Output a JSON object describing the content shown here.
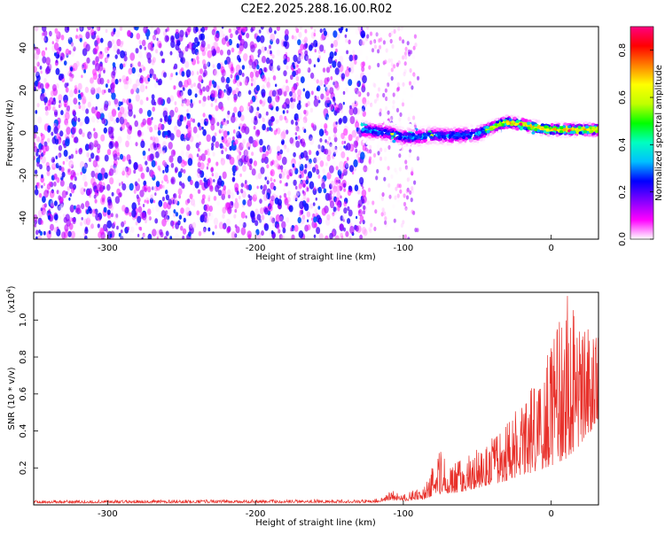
{
  "title": "C2E2.2025.288.16.00.R02",
  "chart_data": [
    {
      "type": "heatmap",
      "xlabel": "Height of straight line (km)",
      "ylabel": "Frequency (Hz)",
      "xlim": [
        -350,
        32
      ],
      "ylim": [
        -50,
        50
      ],
      "x_ticks": [
        -300,
        -200,
        -100,
        0
      ],
      "y_ticks": [
        -40,
        -20,
        0,
        20,
        40
      ],
      "noise_region_x": [
        -350,
        -125
      ],
      "sparse_noise_x": [
        -125,
        -90
      ],
      "signal_track": {
        "x": [
          -128,
          -110,
          -100,
          -90,
          -80,
          -70,
          -60,
          -50,
          -40,
          -35,
          -30,
          -20,
          -10,
          0,
          10,
          20,
          32
        ],
        "frequency": [
          1.5,
          0,
          -2,
          -2,
          -1,
          -1.5,
          -1,
          -0.5,
          2.5,
          4,
          5,
          4,
          2.5,
          1.5,
          1.5,
          1.5,
          1.5
        ]
      },
      "colorbar": {
        "label": "Normalized spectral amplitude",
        "range": [
          0.0,
          0.9
        ],
        "ticks": [
          0.0,
          0.2,
          0.4,
          0.6,
          0.8
        ],
        "colormap": [
          "#ffffff",
          "#ff00ff",
          "#8000ff",
          "#0000ff",
          "#00c0ff",
          "#00ffc0",
          "#00ff00",
          "#c0ff00",
          "#ffff00",
          "#ff8000",
          "#ff0000",
          "#ff0080"
        ]
      },
      "grid": false
    },
    {
      "type": "line",
      "xlabel": "Height of straight line (km)",
      "ylabel": "SNR (10 * v/v)",
      "y_multiplier": "(x10",
      "y_multiplier_exp": "4",
      "y_multiplier_close": ")",
      "xlim": [
        -350,
        32
      ],
      "ylim": [
        0,
        1.15
      ],
      "x_ticks": [
        -300,
        -200,
        -100,
        0
      ],
      "y_ticks": [
        0.2,
        0.4,
        0.6,
        0.8,
        1.0
      ],
      "line_color": "#e8302a",
      "envelope": {
        "x": [
          -350,
          -120,
          -112,
          -108,
          -100,
          -85,
          -80,
          -75,
          -70,
          -60,
          -50,
          -40,
          -30,
          -20,
          -10,
          0,
          5,
          10,
          15,
          20,
          25,
          32
        ],
        "base": [
          0.01,
          0.012,
          0.02,
          0.025,
          0.02,
          0.03,
          0.05,
          0.06,
          0.06,
          0.07,
          0.09,
          0.11,
          0.13,
          0.16,
          0.18,
          0.21,
          0.23,
          0.25,
          0.28,
          0.33,
          0.38,
          0.45
        ],
        "peak": [
          0.025,
          0.03,
          0.05,
          0.08,
          0.06,
          0.1,
          0.22,
          0.3,
          0.22,
          0.24,
          0.3,
          0.36,
          0.45,
          0.55,
          0.68,
          0.85,
          0.97,
          1.15,
          1.05,
          0.92,
          0.95,
          0.93
        ]
      },
      "grid": false
    }
  ]
}
